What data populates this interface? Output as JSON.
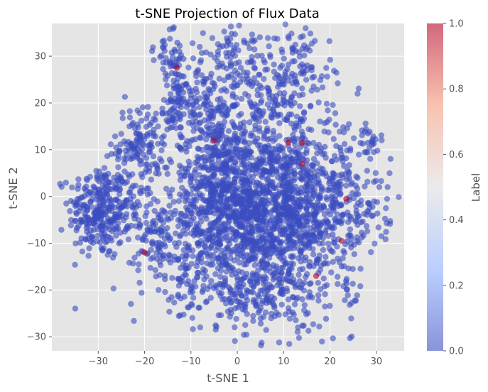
{
  "chart_data": {
    "type": "scatter",
    "title": "t-SNE Projection of Flux Data",
    "xlabel": "t-SNE 1",
    "ylabel": "t-SNE 2",
    "xlim": [
      -40,
      36
    ],
    "ylim": [
      -33,
      37
    ],
    "xticks": [
      -30,
      -20,
      -10,
      0,
      10,
      20,
      30
    ],
    "yticks": [
      -30,
      -20,
      -10,
      0,
      10,
      20,
      30
    ],
    "grid": true,
    "colormap": "coolwarm",
    "colorbar": {
      "label": "Label",
      "range": [
        0,
        1
      ],
      "ticks": [
        "0.0",
        "0.2",
        "0.4",
        "0.6",
        "0.8",
        "1.0"
      ]
    },
    "marker_alpha": 0.6,
    "colors": {
      "low": "#3b4cc0",
      "high": "#b40426",
      "panel": "#e5e5e5",
      "grid": "#ffffff"
    },
    "clusters": [
      {
        "cx": -30,
        "cy": -3,
        "sx": 3.2,
        "sy": 5,
        "n": 260
      },
      {
        "cx": -21,
        "cy": 11,
        "sx": 2.5,
        "sy": 4,
        "n": 120
      },
      {
        "cx": -24,
        "cy": -3,
        "sx": 3,
        "sy": 4,
        "n": 80
      },
      {
        "cx": -17,
        "cy": -9,
        "sx": 2.5,
        "sy": 4,
        "n": 70
      },
      {
        "cx": 6,
        "cy": -4,
        "sx": 9,
        "sy": 9,
        "n": 1400
      },
      {
        "cx": -3,
        "cy": 3,
        "sx": 5,
        "sy": 6,
        "n": 300
      },
      {
        "cx": -5,
        "cy": 18,
        "sx": 6,
        "sy": 7,
        "n": 220
      },
      {
        "cx": 8,
        "cy": 22,
        "sx": 6,
        "sy": 6,
        "n": 180
      },
      {
        "cx": -13,
        "cy": 20,
        "sx": 3,
        "sy": 4,
        "n": 80
      },
      {
        "cx": -14,
        "cy": 31,
        "sx": 2,
        "sy": 3,
        "n": 40
      },
      {
        "cx": 0,
        "cy": 31,
        "sx": 5,
        "sy": 3,
        "n": 60
      },
      {
        "cx": 14,
        "cy": 28,
        "sx": 2,
        "sy": 3,
        "n": 30
      },
      {
        "cx": 15,
        "cy": 5,
        "sx": 6,
        "sy": 6,
        "n": 150
      },
      {
        "cx": 22,
        "cy": -5,
        "sx": 4,
        "sy": 5,
        "n": 90
      },
      {
        "cx": 28,
        "cy": 12,
        "sx": 2,
        "sy": 1.5,
        "n": 30
      },
      {
        "cx": 24,
        "cy": -20,
        "sx": 1.5,
        "sy": 3,
        "n": 20
      },
      {
        "cx": -10,
        "cy": -15,
        "sx": 5,
        "sy": 5,
        "n": 120
      },
      {
        "cx": 5,
        "cy": -22,
        "sx": 6,
        "sy": 4,
        "n": 150
      },
      {
        "cx": 30,
        "cy": 0,
        "sx": 2,
        "sy": 5,
        "n": 25
      }
    ],
    "highlighted_points": [
      {
        "x": -13,
        "y": 27.5,
        "label": 1
      },
      {
        "x": -20,
        "y": -12,
        "label": 1
      },
      {
        "x": -5,
        "y": 12,
        "label": 1
      },
      {
        "x": 11,
        "y": 11.5,
        "label": 1
      },
      {
        "x": 14,
        "y": 11.5,
        "label": 1
      },
      {
        "x": 23.5,
        "y": -0.5,
        "label": 1
      },
      {
        "x": 22.5,
        "y": -9.5,
        "label": 1
      },
      {
        "x": 17,
        "y": -17,
        "label": 1
      },
      {
        "x": 14,
        "y": 7,
        "label": 1
      }
    ]
  }
}
